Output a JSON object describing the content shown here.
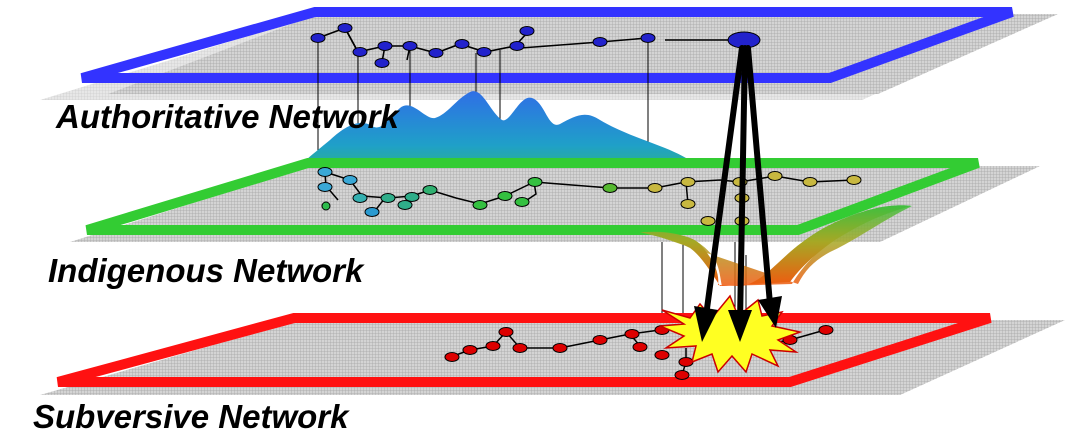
{
  "layers": [
    {
      "id": "authoritative",
      "label": "Authoritative Network",
      "border_color": "#3333ff",
      "node_color": "#2222cc"
    },
    {
      "id": "indigenous",
      "label": "Indigenous Network",
      "border_color": "#33cc33",
      "node_color": "#33aa55"
    },
    {
      "id": "subversive",
      "label": "Subversive Network",
      "border_color": "#ff1111",
      "node_color": "#dd0000"
    }
  ],
  "colors": {
    "grid_fill": "#c9c9c9",
    "grid_line": "#9a9a9a",
    "arrow": "#000000",
    "burst_fill": "#ffff22",
    "burst_stroke": "#cc0000",
    "wave_top_blue": "#2f6fe6",
    "wave_mid_green": "#28b07a",
    "wave_orange": "#f06a10"
  },
  "icons": {
    "arrows": "arrow-down-icon",
    "burst": "explosion-icon"
  }
}
